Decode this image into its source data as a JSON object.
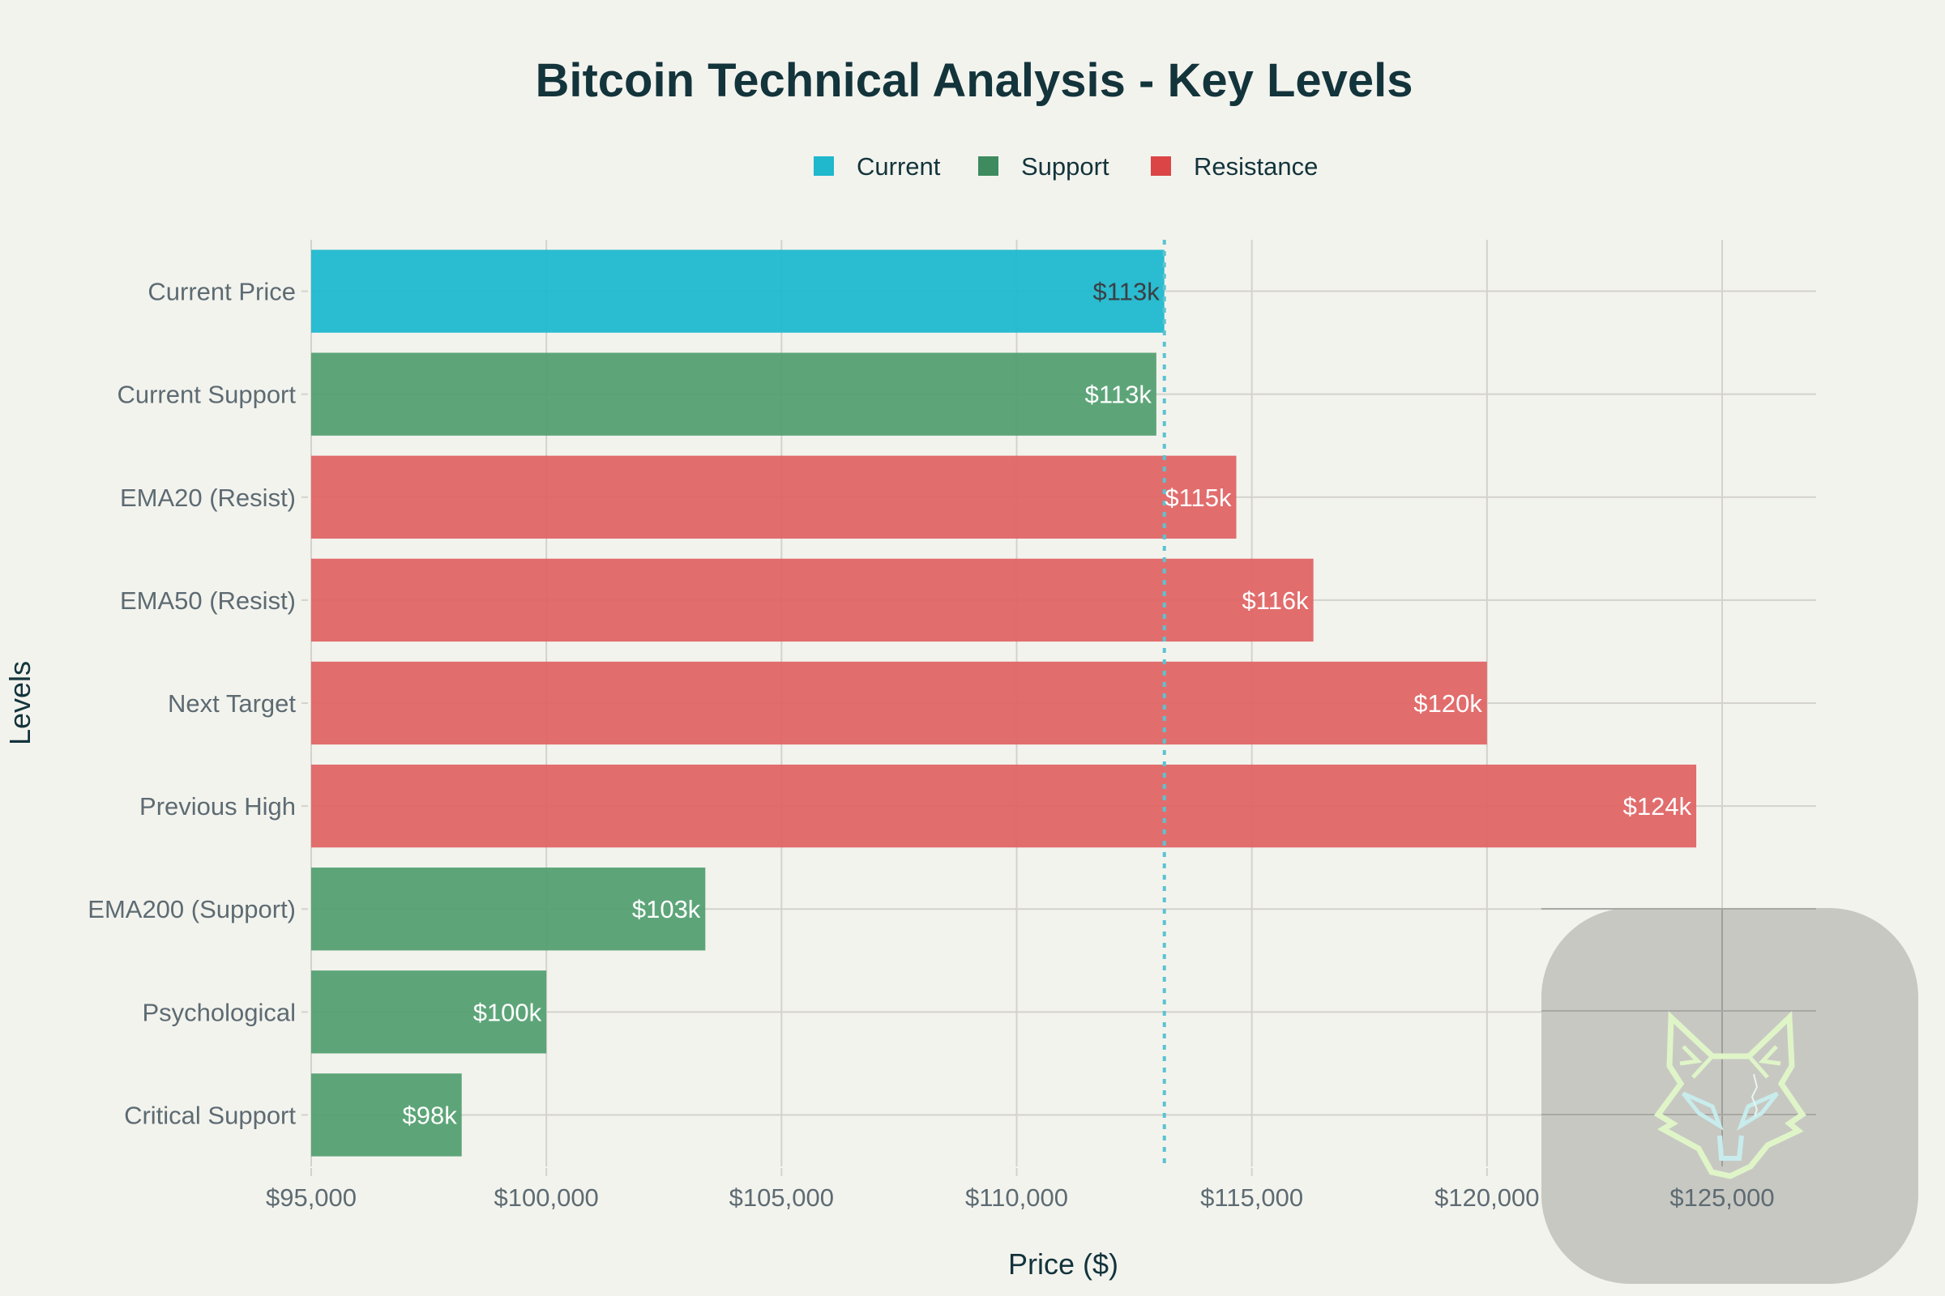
{
  "chart_data": {
    "type": "bar",
    "orientation": "horizontal",
    "title": "Bitcoin Technical Analysis - Key Levels",
    "xlabel": "Price ($)",
    "ylabel": "Levels",
    "xlim": [
      95000,
      126000
    ],
    "xticks": [
      95000,
      100000,
      105000,
      110000,
      115000,
      120000,
      125000
    ],
    "xtick_labels": [
      "$95,000",
      "$100,000",
      "$105,000",
      "$110,000",
      "$115,000",
      "$120,000",
      "$125,000"
    ],
    "grid": true,
    "legend": {
      "placement": "top-center",
      "entries": [
        {
          "name": "Current",
          "color": "#1fb8cd"
        },
        {
          "name": "Support",
          "color": "#3d8b5f"
        },
        {
          "name": "Resistance",
          "color": "#db4545"
        }
      ]
    },
    "bars": [
      {
        "category": "Current Price",
        "value": 113140,
        "label": "$113k",
        "group": "Current",
        "color": "#1fb8cd",
        "label_color": "#3a3f44"
      },
      {
        "category": "Current Support",
        "value": 112970,
        "label": "$113k",
        "group": "Support",
        "color": "#54a072",
        "label_color": "#ffffff"
      },
      {
        "category": "EMA20 (Resist)",
        "value": 114670,
        "label": "$115k",
        "group": "Resistance",
        "color": "#e06565",
        "label_color": "#ffffff"
      },
      {
        "category": "EMA50 (Resist)",
        "value": 116310,
        "label": "$116k",
        "group": "Resistance",
        "color": "#e06565",
        "label_color": "#ffffff"
      },
      {
        "category": "Next Target",
        "value": 120000,
        "label": "$120k",
        "group": "Resistance",
        "color": "#e06565",
        "label_color": "#ffffff"
      },
      {
        "category": "Previous High",
        "value": 124450,
        "label": "$124k",
        "group": "Resistance",
        "color": "#e06565",
        "label_color": "#ffffff"
      },
      {
        "category": "EMA200 (Support)",
        "value": 103380,
        "label": "$103k",
        "group": "Support",
        "color": "#54a072",
        "label_color": "#ffffff"
      },
      {
        "category": "Psychological",
        "value": 100000,
        "label": "$100k",
        "group": "Support",
        "color": "#54a072",
        "label_color": "#ffffff"
      },
      {
        "category": "Critical Support",
        "value": 98200,
        "label": "$98k",
        "group": "Support",
        "color": "#54a072",
        "label_color": "#ffffff"
      }
    ],
    "reference_line": {
      "value": 113140,
      "style": "dotted",
      "color": "#5bc3d0",
      "orientation": "vertical"
    }
  },
  "overlay": {
    "logo": "fox-head-logo-icon",
    "background": "#c6c6c1",
    "fox_outline_color": "#dff5c8",
    "fox_eye_color": "#c8ecec"
  }
}
